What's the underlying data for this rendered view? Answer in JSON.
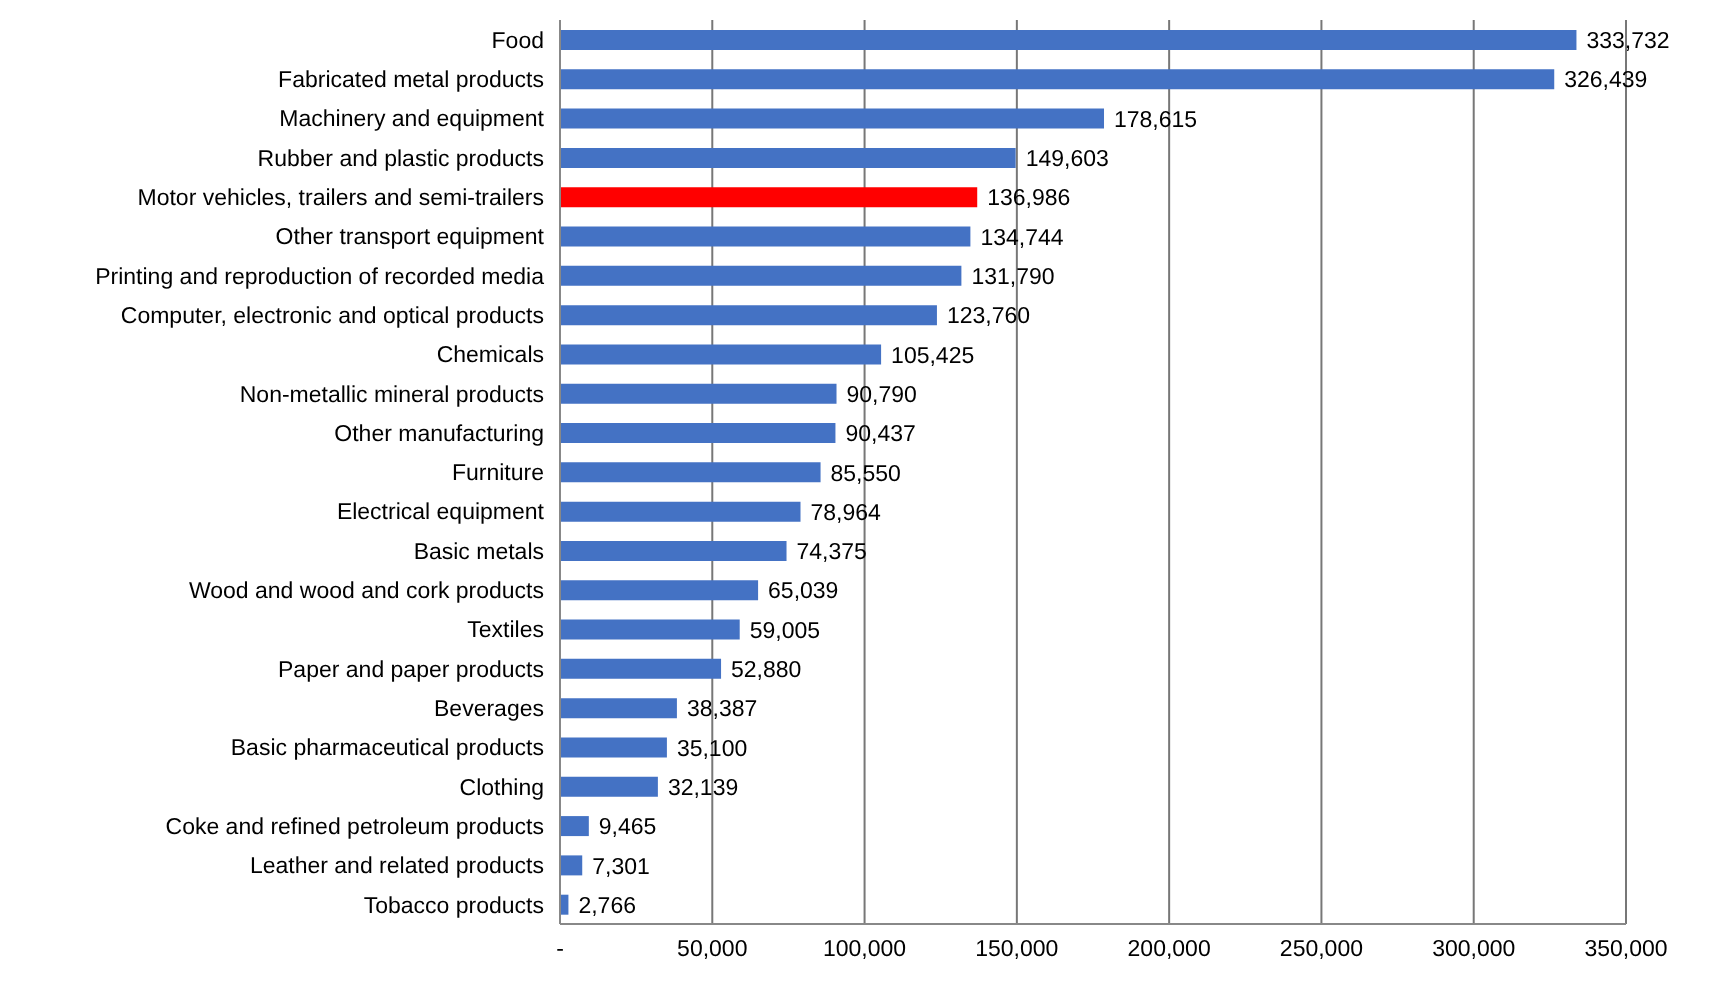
{
  "chart_data": {
    "type": "bar",
    "orientation": "horizontal",
    "categories": [
      "Food",
      "Fabricated metal products",
      "Machinery and equipment",
      "Rubber and plastic products",
      "Motor vehicles, trailers and semi-trailers",
      "Other transport equipment",
      "Printing and reproduction of recorded media",
      "Computer, electronic and optical products",
      "Chemicals",
      "Non-metallic mineral products",
      "Other manufacturing",
      "Furniture",
      "Electrical equipment",
      "Basic metals",
      "Wood and wood and cork products",
      "Textiles",
      "Paper and paper products",
      "Beverages",
      "Basic pharmaceutical products",
      "Clothing",
      "Coke and refined petroleum products",
      "Leather and related products",
      "Tobacco products"
    ],
    "values": [
      333732,
      326439,
      178615,
      149603,
      136986,
      134744,
      131790,
      123760,
      105425,
      90790,
      90437,
      85550,
      78964,
      74375,
      65039,
      59005,
      52880,
      38387,
      35100,
      32139,
      9465,
      7301,
      2766
    ],
    "colors": [
      "#4472c4",
      "#4472c4",
      "#4472c4",
      "#4472c4",
      "#ff0000",
      "#4472c4",
      "#4472c4",
      "#4472c4",
      "#4472c4",
      "#4472c4",
      "#4472c4",
      "#4472c4",
      "#4472c4",
      "#4472c4",
      "#4472c4",
      "#4472c4",
      "#4472c4",
      "#4472c4",
      "#4472c4",
      "#4472c4",
      "#4472c4",
      "#4472c4",
      "#4472c4"
    ],
    "xlim": [
      0,
      350000
    ],
    "xticks": [
      {
        "value": 0,
        "label": "-"
      },
      {
        "value": 50000,
        "label": "50,000"
      },
      {
        "value": 100000,
        "label": "100,000"
      },
      {
        "value": 150000,
        "label": "150,000"
      },
      {
        "value": 200000,
        "label": "200,000"
      },
      {
        "value": 250000,
        "label": "250,000"
      },
      {
        "value": 300000,
        "label": "300,000"
      },
      {
        "value": 350000,
        "label": "350,000"
      }
    ],
    "value_labels": [
      "333,732",
      "326,439",
      "178,615",
      "149,603",
      "136,986",
      "134,744",
      "131,790",
      "123,760",
      "105,425",
      "90,790",
      "90,437",
      "85,550",
      "78,964",
      "74,375",
      "65,039",
      "59,005",
      "52,880",
      "38,387",
      "35,100",
      "32,139",
      "9,465",
      "7,301",
      "2,766"
    ],
    "grid": "x"
  }
}
